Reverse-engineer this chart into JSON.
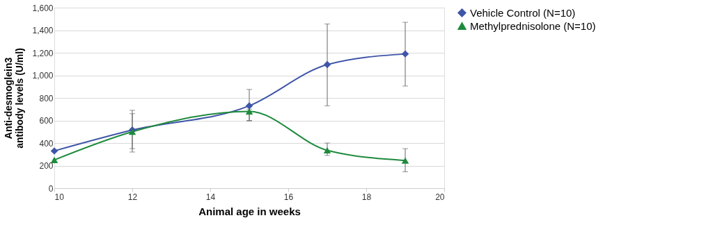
{
  "chart_data": {
    "type": "line",
    "xlabel": "Animal age in weeks",
    "ylabel": "Anti-desmoglein3 antibody levels (U/ml)",
    "x": [
      10,
      12,
      15,
      17,
      19
    ],
    "series": [
      {
        "name": "Vehicle Control (N=10)",
        "color": "#3f55a8",
        "marker": "diamond",
        "values": [
          330,
          515,
          730,
          1095,
          1190
        ],
        "errors": [
          null,
          [
            320,
            690
          ],
          [
            600,
            875
          ],
          [
            730,
            1455
          ],
          [
            905,
            1470
          ]
        ]
      },
      {
        "name": "Methylprednisolone (N=10)",
        "color": "#1e8a3c",
        "marker": "triangle",
        "values": [
          250,
          500,
          680,
          335,
          245
        ],
        "errors": [
          null,
          [
            350,
            660
          ],
          [
            595,
            700
          ],
          [
            290,
            400
          ],
          [
            145,
            350
          ]
        ]
      }
    ],
    "xlim": [
      10,
      20
    ],
    "xticks": [
      10,
      12,
      14,
      16,
      18,
      20
    ],
    "ylim": [
      0,
      1600
    ],
    "yticks": [
      {
        "value": 0,
        "label": "0"
      },
      {
        "value": 200,
        "label": "200"
      },
      {
        "value": 400,
        "label": "400"
      },
      {
        "value": 600,
        "label": "600"
      },
      {
        "value": 800,
        "label": "800"
      },
      {
        "value": 1000,
        "label": "1,000"
      },
      {
        "value": 1200,
        "label": "1,200"
      },
      {
        "value": 1400,
        "label": "1,400"
      },
      {
        "value": 1600,
        "label": "1,600"
      }
    ],
    "grid": "y",
    "legend": "right",
    "line_style": "solid"
  }
}
